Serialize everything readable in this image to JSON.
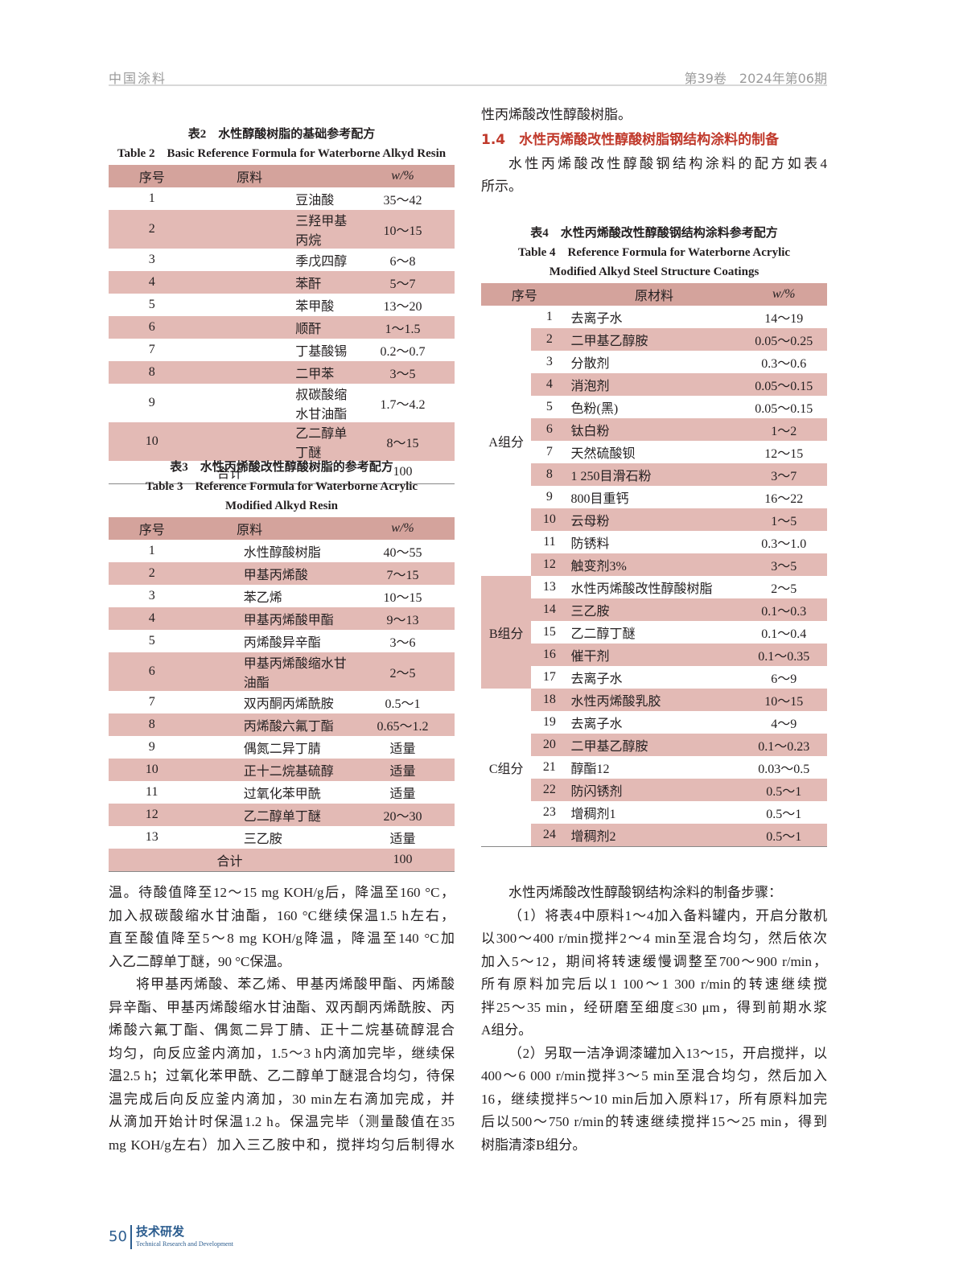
{
  "header": {
    "journal": "中国涂料",
    "issue": "第39卷　2024年第06期"
  },
  "table2": {
    "caption_cn": "表2　水性醇酸树脂的基础参考配方",
    "caption_en": "Table 2　Basic Reference Formula for Waterborne Alkyd Resin",
    "columns": [
      "序号",
      "原料",
      "w/%"
    ],
    "rows": [
      [
        "1",
        "豆油酸",
        "35～42"
      ],
      [
        "2",
        "三羟甲基丙烷",
        "10～15"
      ],
      [
        "3",
        "季戊四醇",
        "6～8"
      ],
      [
        "4",
        "苯酐",
        "5～7"
      ],
      [
        "5",
        "苯甲酸",
        "13～20"
      ],
      [
        "6",
        "顺酐",
        "1～1.5"
      ],
      [
        "7",
        "丁基酸锡",
        "0.2～0.7"
      ],
      [
        "8",
        "二甲苯",
        "3～5"
      ],
      [
        "9",
        "叔碳酸缩水甘油酯",
        "1.7～4.2"
      ],
      [
        "10",
        "乙二醇单丁醚",
        "8～15"
      ]
    ],
    "total": [
      "合计",
      "100"
    ]
  },
  "table3": {
    "caption_cn": "表3　水性丙烯酸改性醇酸树脂的参考配方",
    "caption_en": "Table 3　Reference Formula for Waterborne Acrylic Modified Alkyd Resin",
    "columns": [
      "序号",
      "原料",
      "w/%"
    ],
    "rows": [
      [
        "1",
        "水性醇酸树脂",
        "40～55"
      ],
      [
        "2",
        "甲基丙烯酸",
        "7～15"
      ],
      [
        "3",
        "苯乙烯",
        "10～15"
      ],
      [
        "4",
        "甲基丙烯酸甲酯",
        "9～13"
      ],
      [
        "5",
        "丙烯酸异辛酯",
        "3～6"
      ],
      [
        "6",
        "甲基丙烯酸缩水甘油酯",
        "2～5"
      ],
      [
        "7",
        "双丙酮丙烯酰胺",
        "0.5～1"
      ],
      [
        "8",
        "丙烯酸六氟丁酯",
        "0.65～1.2"
      ],
      [
        "9",
        "偶氮二异丁腈",
        "适量"
      ],
      [
        "10",
        "正十二烷基硫醇",
        "适量"
      ],
      [
        "11",
        "过氧化苯甲酰",
        "适量"
      ],
      [
        "12",
        "乙二醇单丁醚",
        "20～30"
      ],
      [
        "13",
        "三乙胺",
        "适量"
      ]
    ],
    "total": [
      "合计",
      "100"
    ]
  },
  "table4": {
    "caption_cn": "表4　水性丙烯酸改性醇酸钢结构涂料参考配方",
    "caption_en": "Table 4　Reference Formula for Waterborne Acrylic Modified Alkyd Steel Structure Coatings",
    "columns": [
      "序号",
      "原材料",
      "w/%"
    ],
    "groups": [
      {
        "name": "A组分",
        "rows": [
          [
            "1",
            "去离子水",
            "14～19"
          ],
          [
            "2",
            "二甲基乙醇胺",
            "0.05～0.25"
          ],
          [
            "3",
            "分散剂",
            "0.3～0.6"
          ],
          [
            "4",
            "消泡剂",
            "0.05～0.15"
          ],
          [
            "5",
            "色粉(黑)",
            "0.05～0.15"
          ],
          [
            "6",
            "钛白粉",
            "1～2"
          ],
          [
            "7",
            "天然硫酸钡",
            "12～15"
          ],
          [
            "8",
            "1 250目滑石粉",
            "3～7"
          ],
          [
            "9",
            "800目重钙",
            "16～22"
          ],
          [
            "10",
            "云母粉",
            "1～5"
          ],
          [
            "11",
            "防锈料",
            "0.3～1.0"
          ],
          [
            "12",
            "触变剂3%",
            "3～5"
          ]
        ]
      },
      {
        "name": "B组分",
        "rows": [
          [
            "13",
            "水性丙烯酸改性醇酸树脂",
            "2～5"
          ],
          [
            "14",
            "三乙胺",
            "0.1～0.3"
          ],
          [
            "15",
            "乙二醇丁醚",
            "0.1～0.4"
          ],
          [
            "16",
            "催干剂",
            "0.1～0.35"
          ],
          [
            "17",
            "去离子水",
            "6～9"
          ]
        ]
      },
      {
        "name": "C组分",
        "rows": [
          [
            "18",
            "水性丙烯酸乳胶",
            "10～15"
          ],
          [
            "19",
            "去离子水",
            "4～9"
          ],
          [
            "20",
            "二甲基乙醇胺",
            "0.1～0.23"
          ],
          [
            "21",
            "醇酯12",
            "0.03～0.5"
          ],
          [
            "22",
            "防闪锈剂",
            "0.5～1"
          ],
          [
            "23",
            "增稠剂1",
            "0.5～1"
          ],
          [
            "24",
            "增稠剂2",
            "0.5～1"
          ]
        ]
      }
    ]
  },
  "right_top": {
    "line1": "性丙烯酸改性醇酸树脂。",
    "heading": "1.4　水性丙烯酸改性醇酸树脂钢结构涂料的制备",
    "para": [
      "水性丙烯酸改性醇酸钢结构涂料的配方如表4",
      "所示。"
    ]
  },
  "left_body": [
    {
      "indent": false,
      "lines": [
        "温。待酸值降至12～15 mg KOH/g后，降温至160 °C，",
        "加入叔碳酸缩水甘油酯，160 °C继续保温1.5 h左右，",
        "直至酸值降至5～8 mg KOH/g降温，降温至140 °C加",
        "入乙二醇单丁醚，90 °C保温。"
      ]
    },
    {
      "indent": true,
      "lines": [
        "将甲基丙烯酸、苯乙烯、甲基丙烯酸甲酯、丙烯酸",
        "异辛酯、甲基丙烯酸缩水甘油酯、双丙酮丙烯酰胺、丙",
        "烯酸六氟丁酯、偶氮二异丁腈、正十二烷基硫醇混合",
        "均匀，向反应釜内滴加，1.5～3 h内滴加完毕，继续保",
        "温2.5 h；过氧化苯甲酰、乙二醇单丁醚混合均匀，待保",
        "温完成后向反应釜内滴加，30 min左右滴加完成，并",
        "从滴加开始计时保温1.2 h。保温完毕（测量酸值在35",
        "mg KOH/g左右）加入三乙胺中和，搅拌均匀后制得水"
      ]
    }
  ],
  "right_body": [
    {
      "indent": true,
      "lines": [
        "水性丙烯酸改性醇酸钢结构涂料的制备步骤："
      ]
    },
    {
      "indent": true,
      "lines": [
        "（1）将表4中原料1～4加入备料罐内，开启分散机",
        "以300～400 r/min搅拌2～4 min至混合均匀，然后依次",
        "加入5～12，期间将转速缓慢调整至700～900 r/min，",
        "所有原料加完后以1 100～1 300 r/min的转速继续搅",
        "拌25～35 min，经研磨至细度≤30 μm，得到前期水浆",
        "A组分。"
      ]
    },
    {
      "indent": true,
      "lines": [
        "（2）另取一洁净调漆罐加入13～15，开启搅拌，以",
        "400～6 000 r/min搅拌3～5 min至混合均匀，然后加入",
        "16，继续搅拌5～10 min后加入原料17，所有原料加完",
        "后以500～750 r/min的转速继续搅拌15～25 min，得到",
        "树脂清漆B组分。"
      ]
    }
  ],
  "footer": {
    "page": "50",
    "section_cn": "技术研发",
    "section_en": "Technical Research and Development"
  },
  "colors": {
    "header_row": "#d4a39c",
    "stripe": "#e3bab5",
    "heading": "#c0392b"
  }
}
